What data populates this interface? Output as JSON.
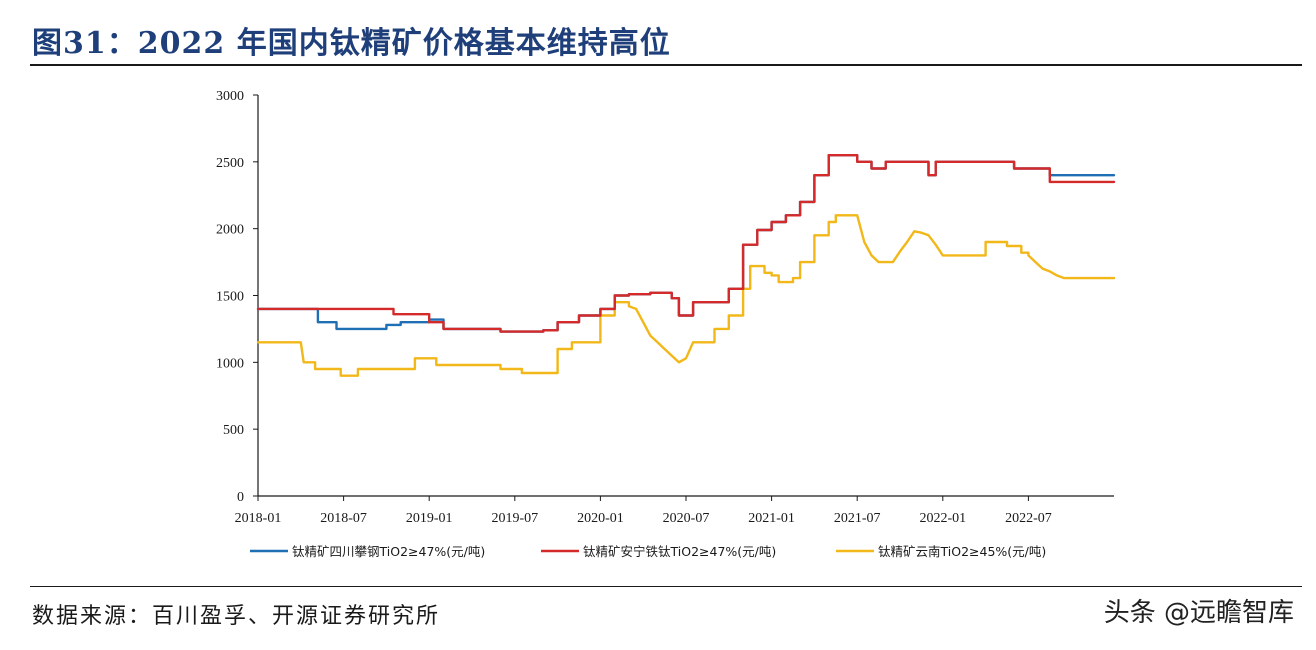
{
  "header": {
    "title": "图31：2022 年国内钛精矿价格基本维持高位"
  },
  "footer": {
    "source": "数据来源：百川盈孚、开源证券研究所",
    "watermark": "头条 @远瞻智库"
  },
  "chart_data": {
    "type": "line",
    "title": "",
    "xlabel": "",
    "ylabel": "",
    "ylim": [
      0,
      3000
    ],
    "yticks": [
      0,
      500,
      1000,
      1500,
      2000,
      2500,
      3000
    ],
    "xlim": [
      0,
      60
    ],
    "xticks": [
      {
        "m": 0,
        "label": "2018-01"
      },
      {
        "m": 6,
        "label": "2018-07"
      },
      {
        "m": 12,
        "label": "2019-01"
      },
      {
        "m": 18,
        "label": "2019-07"
      },
      {
        "m": 24,
        "label": "2020-01"
      },
      {
        "m": 30,
        "label": "2020-07"
      },
      {
        "m": 36,
        "label": "2021-01"
      },
      {
        "m": 42,
        "label": "2021-07"
      },
      {
        "m": 48,
        "label": "2022-01"
      },
      {
        "m": 54,
        "label": "2022-07"
      }
    ],
    "grid": false,
    "legend_position": "bottom",
    "series": [
      {
        "name": "钛精矿四川攀钢TiO2≥47%(元/吨)",
        "color": "#1f6fb4",
        "points": [
          [
            0,
            1400
          ],
          [
            4.2,
            1400
          ],
          [
            4.2,
            1300
          ],
          [
            5.5,
            1300
          ],
          [
            5.5,
            1250
          ],
          [
            9,
            1250
          ],
          [
            9,
            1280
          ],
          [
            10,
            1280
          ],
          [
            10,
            1300
          ],
          [
            12,
            1300
          ],
          [
            12,
            1320
          ],
          [
            13,
            1320
          ],
          [
            13,
            1250
          ],
          [
            17,
            1250
          ],
          [
            17,
            1230
          ],
          [
            20,
            1230
          ],
          [
            20,
            1240
          ],
          [
            21,
            1240
          ],
          [
            21,
            1300
          ],
          [
            22.5,
            1300
          ],
          [
            22.5,
            1350
          ],
          [
            24,
            1350
          ],
          [
            24,
            1400
          ],
          [
            25,
            1400
          ],
          [
            25,
            1500
          ],
          [
            26,
            1500
          ],
          [
            26,
            1510
          ],
          [
            27.5,
            1510
          ],
          [
            27.5,
            1520
          ],
          [
            29,
            1520
          ],
          [
            29,
            1480
          ],
          [
            29.5,
            1480
          ],
          [
            29.5,
            1350
          ],
          [
            30.5,
            1350
          ],
          [
            30.5,
            1450
          ],
          [
            33,
            1450
          ],
          [
            33,
            1550
          ],
          [
            34,
            1550
          ],
          [
            34,
            1880
          ],
          [
            35,
            1880
          ],
          [
            35,
            1990
          ],
          [
            36,
            1990
          ],
          [
            36,
            2050
          ],
          [
            37,
            2050
          ],
          [
            37,
            2100
          ],
          [
            38,
            2100
          ],
          [
            38,
            2200
          ],
          [
            39,
            2200
          ],
          [
            39,
            2400
          ],
          [
            40,
            2400
          ],
          [
            40,
            2550
          ],
          [
            42,
            2550
          ],
          [
            42,
            2500
          ],
          [
            43,
            2500
          ],
          [
            43,
            2450
          ],
          [
            44,
            2450
          ],
          [
            44,
            2500
          ],
          [
            47,
            2500
          ],
          [
            47,
            2400
          ],
          [
            47.5,
            2400
          ],
          [
            47.5,
            2500
          ],
          [
            53,
            2500
          ],
          [
            53,
            2450
          ],
          [
            55.5,
            2450
          ],
          [
            55.5,
            2400
          ],
          [
            60,
            2400
          ]
        ]
      },
      {
        "name": "钛精矿安宁铁钛TiO2≥47%(元/吨)",
        "color": "#d42a2a",
        "points": [
          [
            0,
            1400
          ],
          [
            9.5,
            1400
          ],
          [
            9.5,
            1360
          ],
          [
            12,
            1360
          ],
          [
            12,
            1300
          ],
          [
            13,
            1300
          ],
          [
            13,
            1250
          ],
          [
            17,
            1250
          ],
          [
            17,
            1230
          ],
          [
            20,
            1230
          ],
          [
            20,
            1240
          ],
          [
            21,
            1240
          ],
          [
            21,
            1300
          ],
          [
            22.5,
            1300
          ],
          [
            22.5,
            1350
          ],
          [
            24,
            1350
          ],
          [
            24,
            1400
          ],
          [
            25,
            1400
          ],
          [
            25,
            1500
          ],
          [
            26,
            1500
          ],
          [
            26,
            1510
          ],
          [
            27.5,
            1510
          ],
          [
            27.5,
            1520
          ],
          [
            29,
            1520
          ],
          [
            29,
            1480
          ],
          [
            29.5,
            1480
          ],
          [
            29.5,
            1350
          ],
          [
            30.5,
            1350
          ],
          [
            30.5,
            1450
          ],
          [
            33,
            1450
          ],
          [
            33,
            1550
          ],
          [
            34,
            1550
          ],
          [
            34,
            1880
          ],
          [
            35,
            1880
          ],
          [
            35,
            1990
          ],
          [
            36,
            1990
          ],
          [
            36,
            2050
          ],
          [
            37,
            2050
          ],
          [
            37,
            2100
          ],
          [
            38,
            2100
          ],
          [
            38,
            2200
          ],
          [
            39,
            2200
          ],
          [
            39,
            2400
          ],
          [
            40,
            2400
          ],
          [
            40,
            2550
          ],
          [
            42,
            2550
          ],
          [
            42,
            2500
          ],
          [
            43,
            2500
          ],
          [
            43,
            2450
          ],
          [
            44,
            2450
          ],
          [
            44,
            2500
          ],
          [
            47,
            2500
          ],
          [
            47,
            2400
          ],
          [
            47.5,
            2400
          ],
          [
            47.5,
            2500
          ],
          [
            53,
            2500
          ],
          [
            53,
            2450
          ],
          [
            55.5,
            2450
          ],
          [
            55.5,
            2350
          ],
          [
            60,
            2350
          ]
        ]
      },
      {
        "name": "钛精矿云南TiO2≥45%(元/吨)",
        "color": "#f2b718",
        "points": [
          [
            0,
            1150
          ],
          [
            3,
            1150
          ],
          [
            3.2,
            1000
          ],
          [
            4,
            1000
          ],
          [
            4,
            950
          ],
          [
            5.8,
            950
          ],
          [
            5.8,
            900
          ],
          [
            7,
            900
          ],
          [
            7,
            950
          ],
          [
            11,
            950
          ],
          [
            11,
            1030
          ],
          [
            12.5,
            1030
          ],
          [
            12.5,
            980
          ],
          [
            17,
            980
          ],
          [
            17,
            950
          ],
          [
            18.5,
            950
          ],
          [
            18.5,
            920
          ],
          [
            21,
            920
          ],
          [
            21,
            1100
          ],
          [
            22,
            1100
          ],
          [
            22,
            1150
          ],
          [
            24,
            1150
          ],
          [
            24,
            1350
          ],
          [
            25,
            1350
          ],
          [
            25,
            1450
          ],
          [
            26,
            1450
          ],
          [
            26,
            1420
          ],
          [
            26.5,
            1400
          ],
          [
            27,
            1300
          ],
          [
            27.5,
            1200
          ],
          [
            28,
            1150
          ],
          [
            28.5,
            1100
          ],
          [
            29,
            1050
          ],
          [
            29.5,
            1000
          ],
          [
            30,
            1030
          ],
          [
            30.5,
            1150
          ],
          [
            32,
            1150
          ],
          [
            32,
            1250
          ],
          [
            33,
            1250
          ],
          [
            33,
            1350
          ],
          [
            34,
            1350
          ],
          [
            34,
            1550
          ],
          [
            34.5,
            1550
          ],
          [
            34.5,
            1720
          ],
          [
            35.5,
            1720
          ],
          [
            35.5,
            1670
          ],
          [
            36,
            1670
          ],
          [
            36,
            1650
          ],
          [
            36.5,
            1650
          ],
          [
            36.5,
            1600
          ],
          [
            37.5,
            1600
          ],
          [
            37.5,
            1630
          ],
          [
            38,
            1630
          ],
          [
            38,
            1750
          ],
          [
            39,
            1750
          ],
          [
            39,
            1950
          ],
          [
            40,
            1950
          ],
          [
            40,
            2050
          ],
          [
            40.5,
            2050
          ],
          [
            40.5,
            2100
          ],
          [
            42,
            2100
          ],
          [
            42.5,
            1900
          ],
          [
            43,
            1800
          ],
          [
            43.5,
            1750
          ],
          [
            44,
            1750
          ],
          [
            44.5,
            1750
          ],
          [
            45,
            1830
          ],
          [
            45.5,
            1900
          ],
          [
            46,
            1980
          ],
          [
            46.5,
            1970
          ],
          [
            47,
            1950
          ],
          [
            47.5,
            1880
          ],
          [
            48,
            1800
          ],
          [
            51,
            1800
          ],
          [
            51,
            1900
          ],
          [
            52.5,
            1900
          ],
          [
            52.5,
            1870
          ],
          [
            53.5,
            1870
          ],
          [
            53.5,
            1820
          ],
          [
            54,
            1820
          ],
          [
            54,
            1800
          ],
          [
            54.5,
            1750
          ],
          [
            55,
            1700
          ],
          [
            55.5,
            1680
          ],
          [
            56,
            1650
          ],
          [
            56.5,
            1630
          ],
          [
            60,
            1630
          ]
        ]
      }
    ]
  }
}
